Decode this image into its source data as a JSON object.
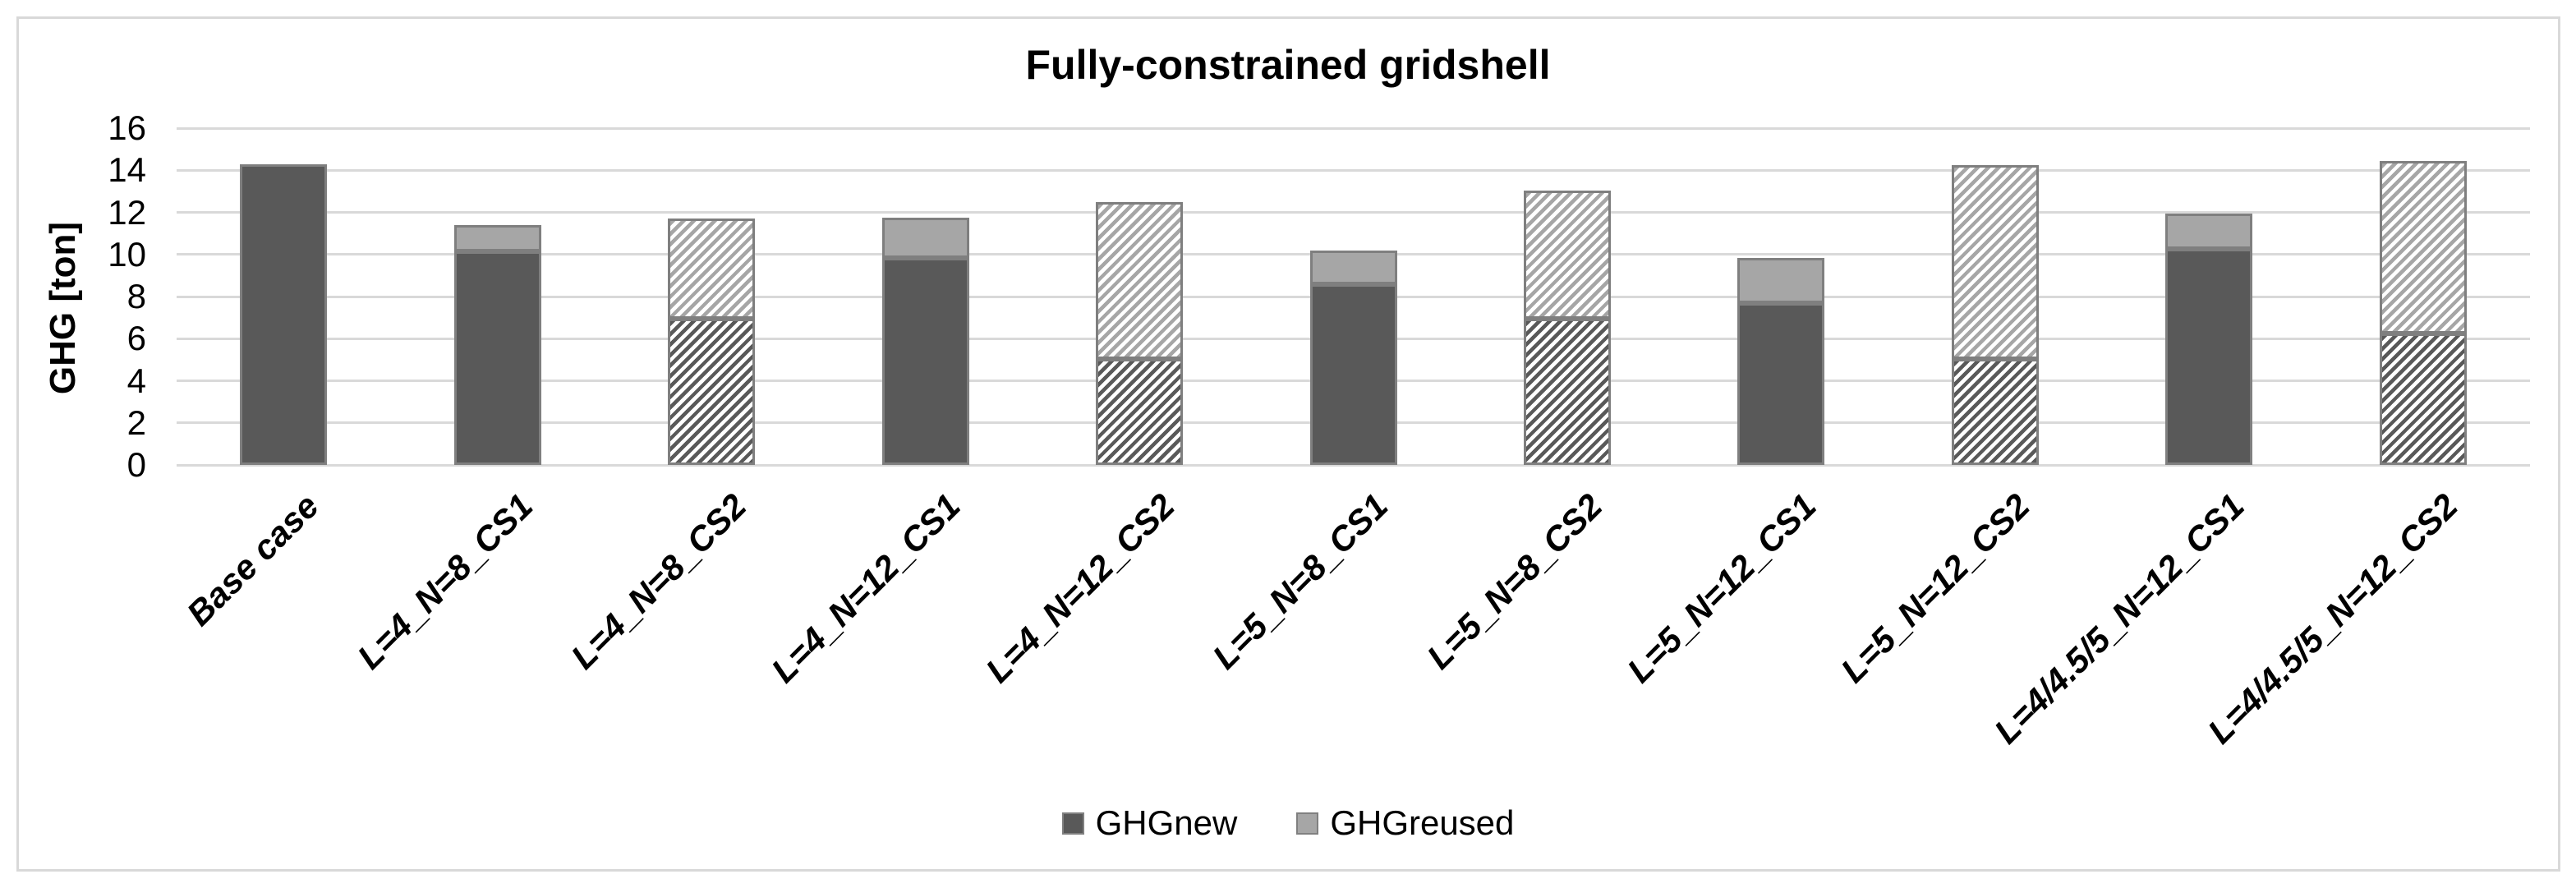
{
  "title": "Fully-constrained gridshell",
  "legend": {
    "items": [
      {
        "label": "GHGnew",
        "color": "#595959"
      },
      {
        "label": "GHGreused",
        "color": "#a6a6a6"
      }
    ]
  },
  "colors": {
    "ghg_new": "#595959",
    "ghg_reused": "#a6a6a6",
    "segment_border": "#7f7f7f",
    "gridline": "#d9d9d9",
    "text": "#000000"
  },
  "chart_data": {
    "type": "bar",
    "stacked": true,
    "title": "Fully-constrained gridshell",
    "xlabel": "",
    "ylabel": "GHG [ton]",
    "ylim": [
      0,
      16
    ],
    "ytick_step": 2,
    "yticks": [
      0,
      2,
      4,
      6,
      8,
      10,
      12,
      14,
      16
    ],
    "grid": "horizontal",
    "legend_position": "bottom-center",
    "categories": [
      "Base case",
      "L=4_N=8_CS1",
      "L=4_N=8_CS2",
      "L=4_N=12_CS1",
      "L=4_N=12_CS2",
      "L=5_N=8_CS1",
      "L=5_N=8_CS2",
      "L=5_N=12_CS1",
      "L=5_N=12_CS2",
      "L=4/4.5/5_N=12_CS1",
      "L=4/4.5/5_N=12_CS2"
    ],
    "series": [
      {
        "name": "GHGnew",
        "color": "#595959",
        "values": [
          14.3,
          10.15,
          6.95,
          9.85,
          5.05,
          8.6,
          6.95,
          7.7,
          5.05,
          10.25,
          6.25
        ]
      },
      {
        "name": "GHGreused",
        "color": "#a6a6a6",
        "values": [
          0,
          1.25,
          4.75,
          1.9,
          7.45,
          1.6,
          6.1,
          2.15,
          9.2,
          1.7,
          8.2
        ]
      }
    ],
    "totals": [
      14.3,
      11.4,
      11.7,
      11.75,
      12.5,
      10.2,
      13.05,
      9.85,
      14.25,
      11.95,
      14.45
    ],
    "bar_patterns": [
      "solid",
      "solid",
      "hatch",
      "solid",
      "hatch",
      "solid",
      "hatch",
      "solid",
      "hatch",
      "solid",
      "hatch"
    ],
    "pattern_note": "CS2 cases drawn with diagonal hatch fill, CS1 and base case solid fill"
  }
}
